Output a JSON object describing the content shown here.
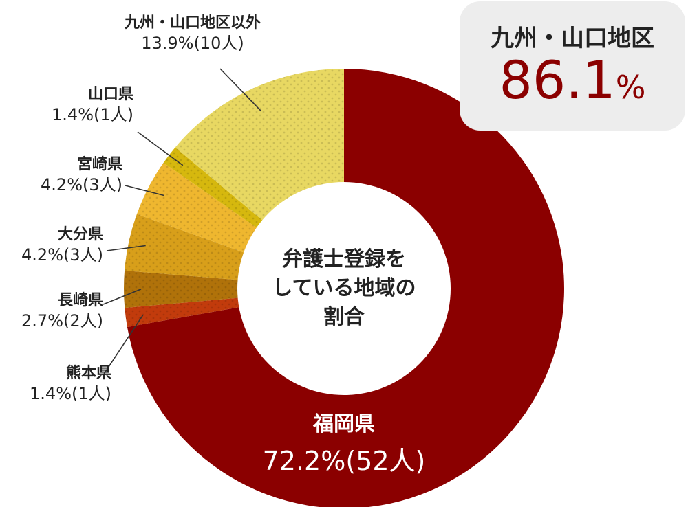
{
  "chart_data": {
    "type": "pie",
    "donut": true,
    "center_text": [
      "弁護士登録を",
      "している地域の",
      "割合"
    ],
    "slices": [
      {
        "name": "福岡県",
        "percent": 72.2,
        "count_label": "72.2%(52人)",
        "color": "#8b0000"
      },
      {
        "name": "熊本県",
        "percent": 1.4,
        "count_label": "1.4%(1人)",
        "color": "#c23b0c"
      },
      {
        "name": "長崎県",
        "percent": 2.7,
        "count_label": "2.7%(2人)",
        "color": "#b0720a"
      },
      {
        "name": "大分県",
        "percent": 4.2,
        "count_label": "4.2%(3人)",
        "color": "#d89f1a"
      },
      {
        "name": "宮崎県",
        "percent": 4.2,
        "count_label": "4.2%(3人)",
        "color": "#efb72f"
      },
      {
        "name": "山口県",
        "percent": 1.4,
        "count_label": "1.4%(1人)",
        "color": "#d6b80e"
      },
      {
        "name": "九州・山口地区以外",
        "percent": 13.9,
        "count_label": "13.9%(10人)",
        "color": "#e8d862"
      }
    ],
    "callout": {
      "title": "九州・山口地区",
      "value": "86.1",
      "unit": "%"
    }
  }
}
